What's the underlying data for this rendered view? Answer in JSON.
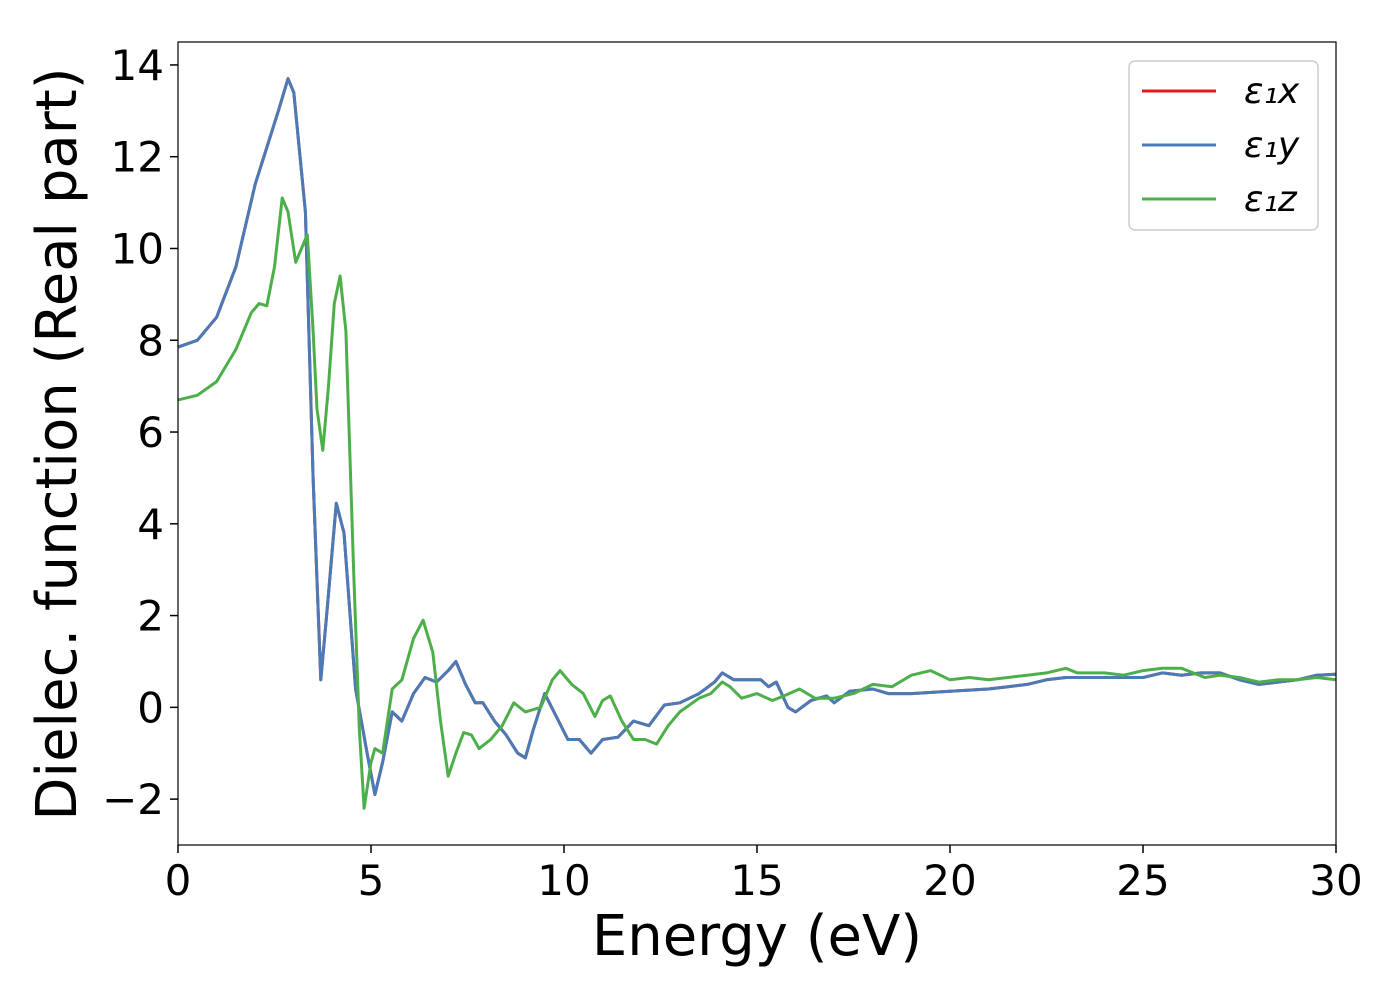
{
  "chart_data": {
    "type": "line",
    "title": "",
    "xlabel": "Energy (eV)",
    "ylabel": "Dielec. function (Real part)",
    "xlim": [
      0,
      30
    ],
    "ylim": [
      -3,
      14.5
    ],
    "xticks": [
      0,
      5,
      10,
      15,
      20,
      25,
      30
    ],
    "xtick_labels": [
      "0",
      "5",
      "10",
      "15",
      "20",
      "25",
      "30"
    ],
    "yticks": [
      -2,
      0,
      2,
      4,
      6,
      8,
      10,
      12,
      14
    ],
    "ytick_labels": [
      "−2",
      "0",
      "2",
      "4",
      "6",
      "8",
      "10",
      "12",
      "14"
    ],
    "grid": false,
    "legend_position": "top-right",
    "series": [
      {
        "name": "ε₁x",
        "color": "#e41a1c",
        "points": [
          [
            0,
            7.85
          ],
          [
            0.5,
            8.0
          ],
          [
            1.0,
            8.5
          ],
          [
            1.5,
            9.6
          ],
          [
            2.0,
            11.4
          ],
          [
            2.3,
            12.2
          ],
          [
            2.6,
            13.0
          ],
          [
            2.85,
            13.7
          ],
          [
            3.0,
            13.4
          ],
          [
            3.3,
            10.8
          ],
          [
            3.5,
            5.0
          ],
          [
            3.7,
            0.6
          ],
          [
            3.85,
            2.0
          ],
          [
            4.1,
            4.45
          ],
          [
            4.3,
            3.8
          ],
          [
            4.6,
            0.4
          ],
          [
            4.9,
            -1.0
          ],
          [
            5.1,
            -1.9
          ],
          [
            5.3,
            -1.2
          ],
          [
            5.55,
            -0.1
          ],
          [
            5.8,
            -0.3
          ],
          [
            6.1,
            0.3
          ],
          [
            6.4,
            0.65
          ],
          [
            6.7,
            0.55
          ],
          [
            7.0,
            0.8
          ],
          [
            7.2,
            1.0
          ],
          [
            7.45,
            0.5
          ],
          [
            7.7,
            0.1
          ],
          [
            7.9,
            0.1
          ],
          [
            8.2,
            -0.3
          ],
          [
            8.5,
            -0.6
          ],
          [
            8.8,
            -1.0
          ],
          [
            9.0,
            -1.1
          ],
          [
            9.2,
            -0.5
          ],
          [
            9.5,
            0.3
          ],
          [
            9.8,
            -0.2
          ],
          [
            10.1,
            -0.7
          ],
          [
            10.4,
            -0.7
          ],
          [
            10.7,
            -1.0
          ],
          [
            11.0,
            -0.7
          ],
          [
            11.4,
            -0.65
          ],
          [
            11.8,
            -0.3
          ],
          [
            12.2,
            -0.4
          ],
          [
            12.6,
            0.05
          ],
          [
            13.0,
            0.1
          ],
          [
            13.5,
            0.3
          ],
          [
            13.9,
            0.55
          ],
          [
            14.1,
            0.75
          ],
          [
            14.4,
            0.6
          ],
          [
            14.8,
            0.6
          ],
          [
            15.1,
            0.6
          ],
          [
            15.3,
            0.45
          ],
          [
            15.5,
            0.55
          ],
          [
            15.8,
            0.0
          ],
          [
            16.0,
            -0.1
          ],
          [
            16.4,
            0.15
          ],
          [
            16.8,
            0.25
          ],
          [
            17.0,
            0.1
          ],
          [
            17.4,
            0.35
          ],
          [
            18.0,
            0.4
          ],
          [
            18.4,
            0.3
          ],
          [
            19.0,
            0.3
          ],
          [
            20.0,
            0.35
          ],
          [
            21.0,
            0.4
          ],
          [
            21.5,
            0.45
          ],
          [
            22.0,
            0.5
          ],
          [
            22.5,
            0.6
          ],
          [
            23.0,
            0.65
          ],
          [
            24.0,
            0.65
          ],
          [
            25.0,
            0.65
          ],
          [
            25.5,
            0.75
          ],
          [
            26.0,
            0.7
          ],
          [
            26.5,
            0.75
          ],
          [
            27.0,
            0.75
          ],
          [
            27.5,
            0.6
          ],
          [
            28.0,
            0.5
          ],
          [
            28.5,
            0.55
          ],
          [
            29.0,
            0.6
          ],
          [
            29.5,
            0.7
          ],
          [
            30.0,
            0.72
          ]
        ]
      },
      {
        "name": "ε₁y",
        "color": "#4a7bb7",
        "points": [
          [
            0,
            7.85
          ],
          [
            0.5,
            8.0
          ],
          [
            1.0,
            8.5
          ],
          [
            1.5,
            9.6
          ],
          [
            2.0,
            11.4
          ],
          [
            2.3,
            12.2
          ],
          [
            2.6,
            13.0
          ],
          [
            2.85,
            13.7
          ],
          [
            3.0,
            13.4
          ],
          [
            3.3,
            10.8
          ],
          [
            3.5,
            5.0
          ],
          [
            3.7,
            0.6
          ],
          [
            3.85,
            2.0
          ],
          [
            4.1,
            4.45
          ],
          [
            4.3,
            3.8
          ],
          [
            4.6,
            0.4
          ],
          [
            4.9,
            -1.0
          ],
          [
            5.1,
            -1.9
          ],
          [
            5.3,
            -1.2
          ],
          [
            5.55,
            -0.1
          ],
          [
            5.8,
            -0.3
          ],
          [
            6.1,
            0.3
          ],
          [
            6.4,
            0.65
          ],
          [
            6.7,
            0.55
          ],
          [
            7.0,
            0.8
          ],
          [
            7.2,
            1.0
          ],
          [
            7.45,
            0.5
          ],
          [
            7.7,
            0.1
          ],
          [
            7.9,
            0.1
          ],
          [
            8.2,
            -0.3
          ],
          [
            8.5,
            -0.6
          ],
          [
            8.8,
            -1.0
          ],
          [
            9.0,
            -1.1
          ],
          [
            9.2,
            -0.5
          ],
          [
            9.5,
            0.3
          ],
          [
            9.8,
            -0.2
          ],
          [
            10.1,
            -0.7
          ],
          [
            10.4,
            -0.7
          ],
          [
            10.7,
            -1.0
          ],
          [
            11.0,
            -0.7
          ],
          [
            11.4,
            -0.65
          ],
          [
            11.8,
            -0.3
          ],
          [
            12.2,
            -0.4
          ],
          [
            12.6,
            0.05
          ],
          [
            13.0,
            0.1
          ],
          [
            13.5,
            0.3
          ],
          [
            13.9,
            0.55
          ],
          [
            14.1,
            0.75
          ],
          [
            14.4,
            0.6
          ],
          [
            14.8,
            0.6
          ],
          [
            15.1,
            0.6
          ],
          [
            15.3,
            0.45
          ],
          [
            15.5,
            0.55
          ],
          [
            15.8,
            0.0
          ],
          [
            16.0,
            -0.1
          ],
          [
            16.4,
            0.15
          ],
          [
            16.8,
            0.25
          ],
          [
            17.0,
            0.1
          ],
          [
            17.4,
            0.35
          ],
          [
            18.0,
            0.4
          ],
          [
            18.4,
            0.3
          ],
          [
            19.0,
            0.3
          ],
          [
            20.0,
            0.35
          ],
          [
            21.0,
            0.4
          ],
          [
            21.5,
            0.45
          ],
          [
            22.0,
            0.5
          ],
          [
            22.5,
            0.6
          ],
          [
            23.0,
            0.65
          ],
          [
            24.0,
            0.65
          ],
          [
            25.0,
            0.65
          ],
          [
            25.5,
            0.75
          ],
          [
            26.0,
            0.7
          ],
          [
            26.5,
            0.75
          ],
          [
            27.0,
            0.75
          ],
          [
            27.5,
            0.6
          ],
          [
            28.0,
            0.5
          ],
          [
            28.5,
            0.55
          ],
          [
            29.0,
            0.6
          ],
          [
            29.5,
            0.7
          ],
          [
            30.0,
            0.72
          ]
        ]
      },
      {
        "name": "ε₁z",
        "color": "#4daf4a",
        "points": [
          [
            0,
            6.7
          ],
          [
            0.5,
            6.8
          ],
          [
            1.0,
            7.1
          ],
          [
            1.5,
            7.8
          ],
          [
            1.9,
            8.6
          ],
          [
            2.1,
            8.8
          ],
          [
            2.3,
            8.75
          ],
          [
            2.5,
            9.6
          ],
          [
            2.7,
            11.1
          ],
          [
            2.85,
            10.8
          ],
          [
            3.05,
            9.7
          ],
          [
            3.2,
            10.0
          ],
          [
            3.35,
            10.3
          ],
          [
            3.5,
            8.2
          ],
          [
            3.6,
            6.5
          ],
          [
            3.75,
            5.6
          ],
          [
            3.9,
            7.0
          ],
          [
            4.05,
            8.8
          ],
          [
            4.2,
            9.4
          ],
          [
            4.35,
            8.2
          ],
          [
            4.55,
            3.0
          ],
          [
            4.7,
            -0.5
          ],
          [
            4.82,
            -2.2
          ],
          [
            5.0,
            -1.2
          ],
          [
            5.1,
            -0.9
          ],
          [
            5.3,
            -1.0
          ],
          [
            5.55,
            0.4
          ],
          [
            5.8,
            0.6
          ],
          [
            6.1,
            1.5
          ],
          [
            6.35,
            1.9
          ],
          [
            6.6,
            1.2
          ],
          [
            6.8,
            -0.3
          ],
          [
            7.0,
            -1.5
          ],
          [
            7.2,
            -1.0
          ],
          [
            7.4,
            -0.55
          ],
          [
            7.6,
            -0.6
          ],
          [
            7.8,
            -0.9
          ],
          [
            8.1,
            -0.7
          ],
          [
            8.4,
            -0.4
          ],
          [
            8.7,
            0.1
          ],
          [
            9.0,
            -0.1
          ],
          [
            9.4,
            0.0
          ],
          [
            9.7,
            0.6
          ],
          [
            9.9,
            0.8
          ],
          [
            10.2,
            0.5
          ],
          [
            10.5,
            0.3
          ],
          [
            10.8,
            -0.2
          ],
          [
            11.0,
            0.15
          ],
          [
            11.2,
            0.25
          ],
          [
            11.5,
            -0.3
          ],
          [
            11.8,
            -0.7
          ],
          [
            12.1,
            -0.7
          ],
          [
            12.4,
            -0.8
          ],
          [
            12.7,
            -0.4
          ],
          [
            13.0,
            -0.1
          ],
          [
            13.5,
            0.2
          ],
          [
            13.8,
            0.3
          ],
          [
            14.1,
            0.55
          ],
          [
            14.3,
            0.45
          ],
          [
            14.6,
            0.2
          ],
          [
            15.0,
            0.3
          ],
          [
            15.4,
            0.15
          ],
          [
            15.7,
            0.25
          ],
          [
            16.1,
            0.4
          ],
          [
            16.5,
            0.2
          ],
          [
            17.0,
            0.2
          ],
          [
            17.5,
            0.3
          ],
          [
            18.0,
            0.5
          ],
          [
            18.5,
            0.45
          ],
          [
            19.0,
            0.7
          ],
          [
            19.5,
            0.8
          ],
          [
            20.0,
            0.6
          ],
          [
            20.5,
            0.65
          ],
          [
            21.0,
            0.6
          ],
          [
            21.5,
            0.65
          ],
          [
            22.0,
            0.7
          ],
          [
            22.5,
            0.75
          ],
          [
            23.0,
            0.85
          ],
          [
            23.3,
            0.75
          ],
          [
            24.0,
            0.75
          ],
          [
            24.5,
            0.7
          ],
          [
            25.0,
            0.8
          ],
          [
            25.5,
            0.85
          ],
          [
            26.0,
            0.85
          ],
          [
            26.3,
            0.75
          ],
          [
            26.6,
            0.65
          ],
          [
            27.0,
            0.7
          ],
          [
            27.5,
            0.65
          ],
          [
            28.0,
            0.55
          ],
          [
            28.5,
            0.6
          ],
          [
            29.0,
            0.6
          ],
          [
            29.5,
            0.65
          ],
          [
            30.0,
            0.6
          ]
        ]
      }
    ]
  }
}
